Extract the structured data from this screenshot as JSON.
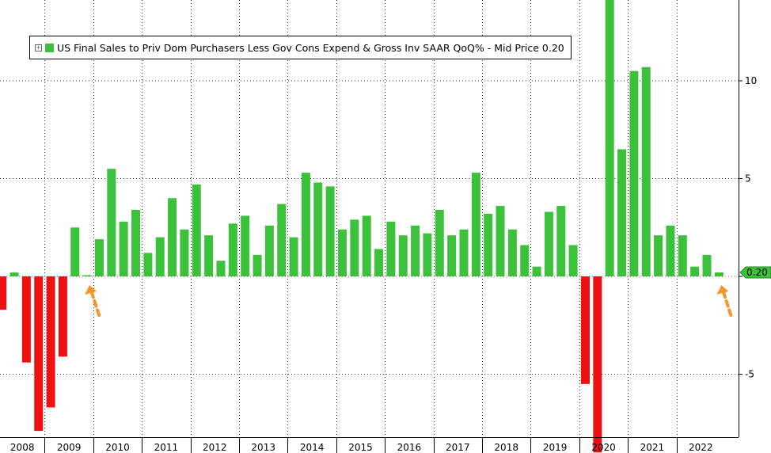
{
  "chart_data": {
    "type": "bar",
    "title": "US Final Sales to Priv Dom Purchasers Less Gov Cons Expend & Gross Inv SAAR QoQ%",
    "series": [
      {
        "name": "US Final Sales to Priv Dom Purchasers Less Gov Cons Expend & Gross Inv SAAR QoQ%",
        "last_label": "Mid Price",
        "last_value": "0.20",
        "positive_color": "#3cc23a",
        "negative_color": "#ee1111",
        "quarters": [
          "2008Q1",
          "2008Q2",
          "2008Q3",
          "2008Q4",
          "2009Q1",
          "2009Q2",
          "2009Q3",
          "2009Q4",
          "2010Q1",
          "2010Q2",
          "2010Q3",
          "2010Q4",
          "2011Q1",
          "2011Q2",
          "2011Q3",
          "2011Q4",
          "2012Q1",
          "2012Q2",
          "2012Q3",
          "2012Q4",
          "2013Q1",
          "2013Q2",
          "2013Q3",
          "2013Q4",
          "2014Q1",
          "2014Q2",
          "2014Q3",
          "2014Q4",
          "2015Q1",
          "2015Q2",
          "2015Q3",
          "2015Q4",
          "2016Q1",
          "2016Q2",
          "2016Q3",
          "2016Q4",
          "2017Q1",
          "2017Q2",
          "2017Q3",
          "2017Q4",
          "2018Q1",
          "2018Q2",
          "2018Q3",
          "2018Q4",
          "2019Q1",
          "2019Q2",
          "2019Q3",
          "2019Q4",
          "2020Q1",
          "2020Q2",
          "2020Q3",
          "2020Q4",
          "2021Q1",
          "2021Q2",
          "2021Q3",
          "2021Q4",
          "2022Q1",
          "2022Q2",
          "2022Q3",
          "2022Q4"
        ],
        "values": [
          -1.7,
          0.2,
          -4.4,
          -7.9,
          -6.7,
          -4.1,
          2.5,
          0.05,
          1.9,
          5.5,
          2.8,
          3.4,
          1.2,
          2.0,
          4.0,
          2.4,
          4.7,
          2.1,
          0.8,
          2.7,
          3.1,
          1.1,
          2.6,
          3.7,
          2.0,
          5.3,
          4.8,
          4.6,
          2.4,
          2.9,
          3.1,
          1.4,
          2.8,
          2.1,
          2.6,
          2.2,
          3.4,
          2.1,
          2.4,
          5.3,
          3.2,
          3.6,
          2.4,
          1.6,
          0.5,
          3.3,
          3.6,
          1.6,
          -5.5,
          -9.0,
          15.0,
          6.5,
          10.5,
          10.7,
          2.1,
          2.6,
          2.1,
          0.5,
          1.1,
          0.2
        ]
      }
    ],
    "years": [
      "2008",
      "2009",
      "2010",
      "2011",
      "2012",
      "2013",
      "2014",
      "2015",
      "2016",
      "2017",
      "2018",
      "2019",
      "2020",
      "2021",
      "2022"
    ],
    "yticks": [
      -5,
      0,
      5,
      10
    ],
    "ytick_labels": [
      "-5",
      "",
      "5",
      "10"
    ],
    "ylim": [
      -8.2,
      14
    ],
    "grid": "dotted",
    "legend_position": "top-left",
    "annotations": [
      "arrow-up-2009Q4",
      "arrow-up-2022Q4"
    ]
  }
}
